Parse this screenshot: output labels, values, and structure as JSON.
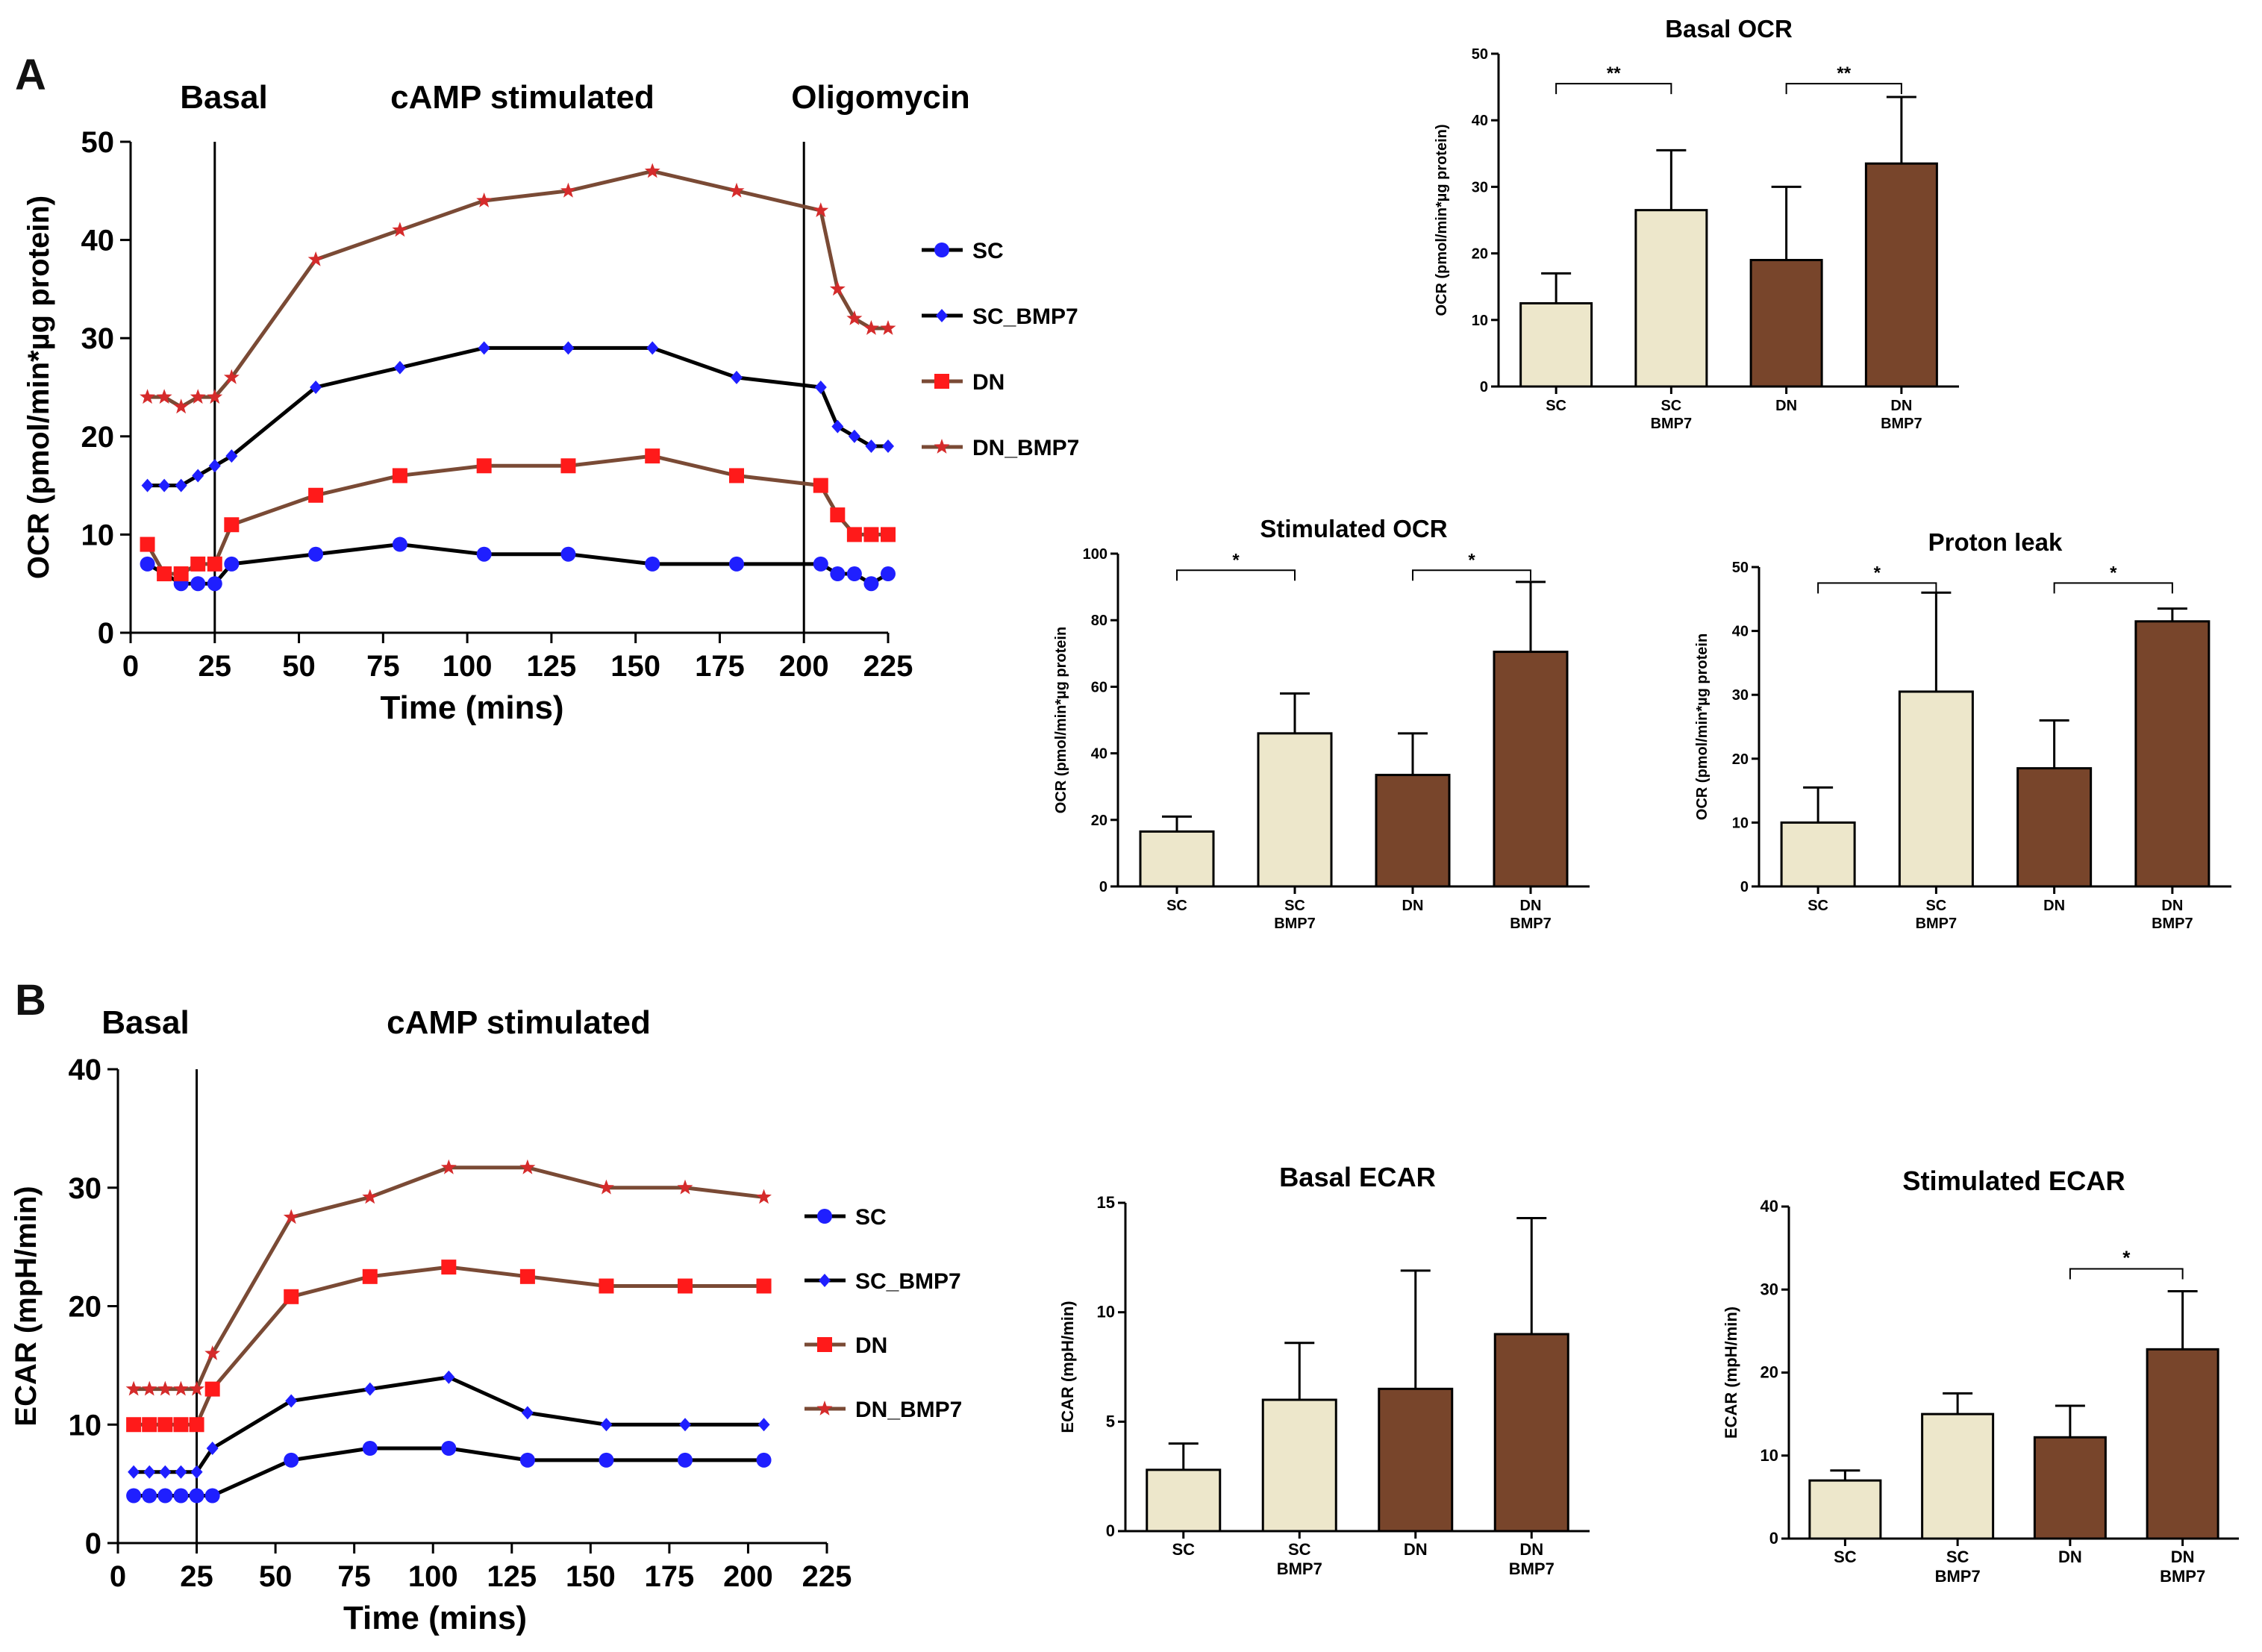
{
  "figure": {
    "panel_a_label": "A",
    "panel_b_label": "B"
  },
  "colors": {
    "SC": "#1f1fff",
    "SC_BMP7": "#1f1fff",
    "DN": "#ff1a1a",
    "DN_BMP7": "#d52b2b",
    "bar_light": "#ede7cb",
    "bar_dark": "#78452b"
  },
  "chart_data": [
    {
      "id": "ocr_time",
      "type": "line",
      "title": "",
      "xlabel": "Time (mins)",
      "ylabel": "OCR (pmol/min*µg protein)",
      "xlim": [
        0,
        225
      ],
      "ylim": [
        0,
        50
      ],
      "xticks": [
        0,
        25,
        50,
        75,
        100,
        125,
        150,
        175,
        200,
        225
      ],
      "yticks": [
        0,
        10,
        20,
        30,
        40,
        50
      ],
      "phase_labels": [
        "Basal",
        "cAMP stimulated",
        "Oligomycin"
      ],
      "phase_lines_x": [
        25,
        200
      ],
      "series": [
        {
          "name": "SC",
          "marker": "circle",
          "line_color": "#000000",
          "x": [
            5,
            10,
            15,
            20,
            25,
            30,
            55,
            80,
            105,
            130,
            155,
            180,
            205,
            210,
            215,
            220,
            225
          ],
          "y": [
            7,
            6,
            5,
            5,
            5,
            7,
            8,
            9,
            8,
            8,
            7,
            7,
            7,
            6,
            6,
            5,
            6
          ]
        },
        {
          "name": "SC_BMP7",
          "marker": "diamond",
          "line_color": "#000000",
          "x": [
            5,
            10,
            15,
            20,
            25,
            30,
            55,
            80,
            105,
            130,
            155,
            180,
            205,
            210,
            215,
            220,
            225
          ],
          "y": [
            15,
            15,
            15,
            16,
            17,
            18,
            25,
            27,
            29,
            29,
            29,
            26,
            25,
            21,
            20,
            19,
            19
          ]
        },
        {
          "name": "DN",
          "marker": "square",
          "line_color": "#7a4a35",
          "x": [
            5,
            10,
            15,
            20,
            25,
            30,
            55,
            80,
            105,
            130,
            155,
            180,
            205,
            210,
            215,
            220,
            225
          ],
          "y": [
            9,
            6,
            6,
            7,
            7,
            11,
            14,
            16,
            17,
            17,
            18,
            16,
            15,
            12,
            10,
            10,
            10
          ]
        },
        {
          "name": "DN_BMP7",
          "marker": "star",
          "line_color": "#7a4a35",
          "x": [
            5,
            10,
            15,
            20,
            25,
            30,
            55,
            80,
            105,
            130,
            155,
            180,
            205,
            210,
            215,
            220,
            225
          ],
          "y": [
            24,
            24,
            23,
            24,
            24,
            26,
            38,
            41,
            44,
            45,
            47,
            45,
            43,
            35,
            32,
            31,
            31
          ]
        }
      ]
    },
    {
      "id": "basal_ocr",
      "type": "bar",
      "title": "Basal OCR",
      "ylabel": "OCR (pmol/min*µg protein)",
      "ylim": [
        0,
        50
      ],
      "yticks": [
        0,
        10,
        20,
        30,
        40,
        50
      ],
      "categories": [
        [
          "SC"
        ],
        [
          "SC",
          "BMP7"
        ],
        [
          "DN"
        ],
        [
          "DN",
          "BMP7"
        ]
      ],
      "values": [
        12.5,
        26.5,
        19,
        33.5
      ],
      "errors": [
        4.5,
        9,
        11,
        10
      ],
      "significance": [
        {
          "from": 0,
          "to": 1,
          "label": "**",
          "y": 45.5
        },
        {
          "from": 2,
          "to": 3,
          "label": "**",
          "y": 45.5
        }
      ]
    },
    {
      "id": "stim_ocr",
      "type": "bar",
      "title": "Stimulated OCR",
      "ylabel": "OCR (pmol/min*µg protein",
      "ylim": [
        0,
        100
      ],
      "yticks": [
        0,
        20,
        40,
        60,
        80,
        100
      ],
      "categories": [
        [
          "SC"
        ],
        [
          "SC",
          "BMP7"
        ],
        [
          "DN"
        ],
        [
          "DN",
          "BMP7"
        ]
      ],
      "values": [
        16.5,
        46,
        33.5,
        70.5
      ],
      "errors": [
        4.5,
        12,
        12.5,
        21
      ],
      "significance": [
        {
          "from": 0,
          "to": 1,
          "label": "*",
          "y": 95
        },
        {
          "from": 2,
          "to": 3,
          "label": "*",
          "y": 95
        }
      ]
    },
    {
      "id": "proton_leak",
      "type": "bar",
      "title": "Proton leak",
      "ylabel": "OCR (pmol/min*µg protein",
      "ylim": [
        0,
        50
      ],
      "yticks": [
        0,
        10,
        20,
        30,
        40,
        50
      ],
      "categories": [
        [
          "SC"
        ],
        [
          "SC",
          "BMP7"
        ],
        [
          "DN"
        ],
        [
          "DN",
          "BMP7"
        ]
      ],
      "values": [
        10,
        30.5,
        18.5,
        41.5
      ],
      "errors": [
        5.5,
        15.5,
        7.5,
        2
      ],
      "significance": [
        {
          "from": 0,
          "to": 1,
          "label": "*",
          "y": 47.5
        },
        {
          "from": 2,
          "to": 3,
          "label": "*",
          "y": 47.5
        }
      ]
    },
    {
      "id": "ecar_time",
      "type": "line",
      "title": "",
      "xlabel": "Time (mins)",
      "ylabel": "ECAR (mpH/min)",
      "xlim": [
        0,
        225
      ],
      "ylim": [
        0,
        40
      ],
      "xticks": [
        0,
        25,
        50,
        75,
        100,
        125,
        150,
        175,
        200,
        225
      ],
      "yticks": [
        0,
        10,
        20,
        30,
        40
      ],
      "phase_labels": [
        "Basal",
        "cAMP stimulated"
      ],
      "phase_lines_x": [
        25
      ],
      "series": [
        {
          "name": "SC",
          "marker": "circle",
          "line_color": "#000000",
          "x": [
            5,
            10,
            15,
            20,
            25,
            30,
            55,
            80,
            105,
            130,
            155,
            180,
            205
          ],
          "y": [
            4,
            4,
            4,
            4,
            4,
            4,
            7,
            8,
            8,
            7,
            7,
            7,
            7
          ]
        },
        {
          "name": "SC_BMP7",
          "marker": "diamond",
          "line_color": "#000000",
          "x": [
            5,
            10,
            15,
            20,
            25,
            30,
            55,
            80,
            105,
            130,
            155,
            180,
            205
          ],
          "y": [
            6,
            6,
            6,
            6,
            6,
            8,
            12,
            13,
            14,
            11,
            10,
            10,
            10
          ]
        },
        {
          "name": "DN",
          "marker": "square",
          "line_color": "#7a4a35",
          "x": [
            5,
            10,
            15,
            20,
            25,
            30,
            55,
            80,
            105,
            130,
            155,
            180,
            205
          ],
          "y": [
            10,
            10,
            10,
            10,
            10,
            13,
            20.8,
            22.5,
            23.3,
            22.5,
            21.7,
            21.7,
            21.7
          ]
        },
        {
          "name": "DN_BMP7",
          "marker": "star",
          "line_color": "#7a4a35",
          "x": [
            5,
            10,
            15,
            20,
            25,
            30,
            55,
            80,
            105,
            130,
            155,
            180,
            205
          ],
          "y": [
            13,
            13,
            13,
            13,
            13,
            16,
            27.5,
            29.2,
            31.7,
            31.7,
            30,
            30,
            29.2
          ]
        }
      ]
    },
    {
      "id": "basal_ecar",
      "type": "bar",
      "title": "Basal ECAR",
      "ylabel": "ECAR (mpH/min)",
      "ylim": [
        0,
        15
      ],
      "yticks": [
        0,
        5,
        10,
        15
      ],
      "categories": [
        [
          "SC"
        ],
        [
          "SC",
          "BMP7"
        ],
        [
          "DN"
        ],
        [
          "DN",
          "BMP7"
        ]
      ],
      "values": [
        2.8,
        6,
        6.5,
        9
      ],
      "errors": [
        1.2,
        2.6,
        5.4,
        5.3
      ],
      "significance": []
    },
    {
      "id": "stim_ecar",
      "type": "bar",
      "title": "Stimulated ECAR",
      "ylabel": "ECAR (mpH/min)",
      "ylim": [
        0,
        40
      ],
      "yticks": [
        0,
        10,
        20,
        30,
        40
      ],
      "categories": [
        [
          "SC"
        ],
        [
          "SC",
          "BMP7"
        ],
        [
          "DN"
        ],
        [
          "DN",
          "BMP7"
        ]
      ],
      "values": [
        7,
        15,
        12.2,
        22.8
      ],
      "errors": [
        1.2,
        2.5,
        3.8,
        7
      ],
      "significance": [
        {
          "from": 2,
          "to": 3,
          "label": "*",
          "y": 32.5
        }
      ]
    }
  ]
}
